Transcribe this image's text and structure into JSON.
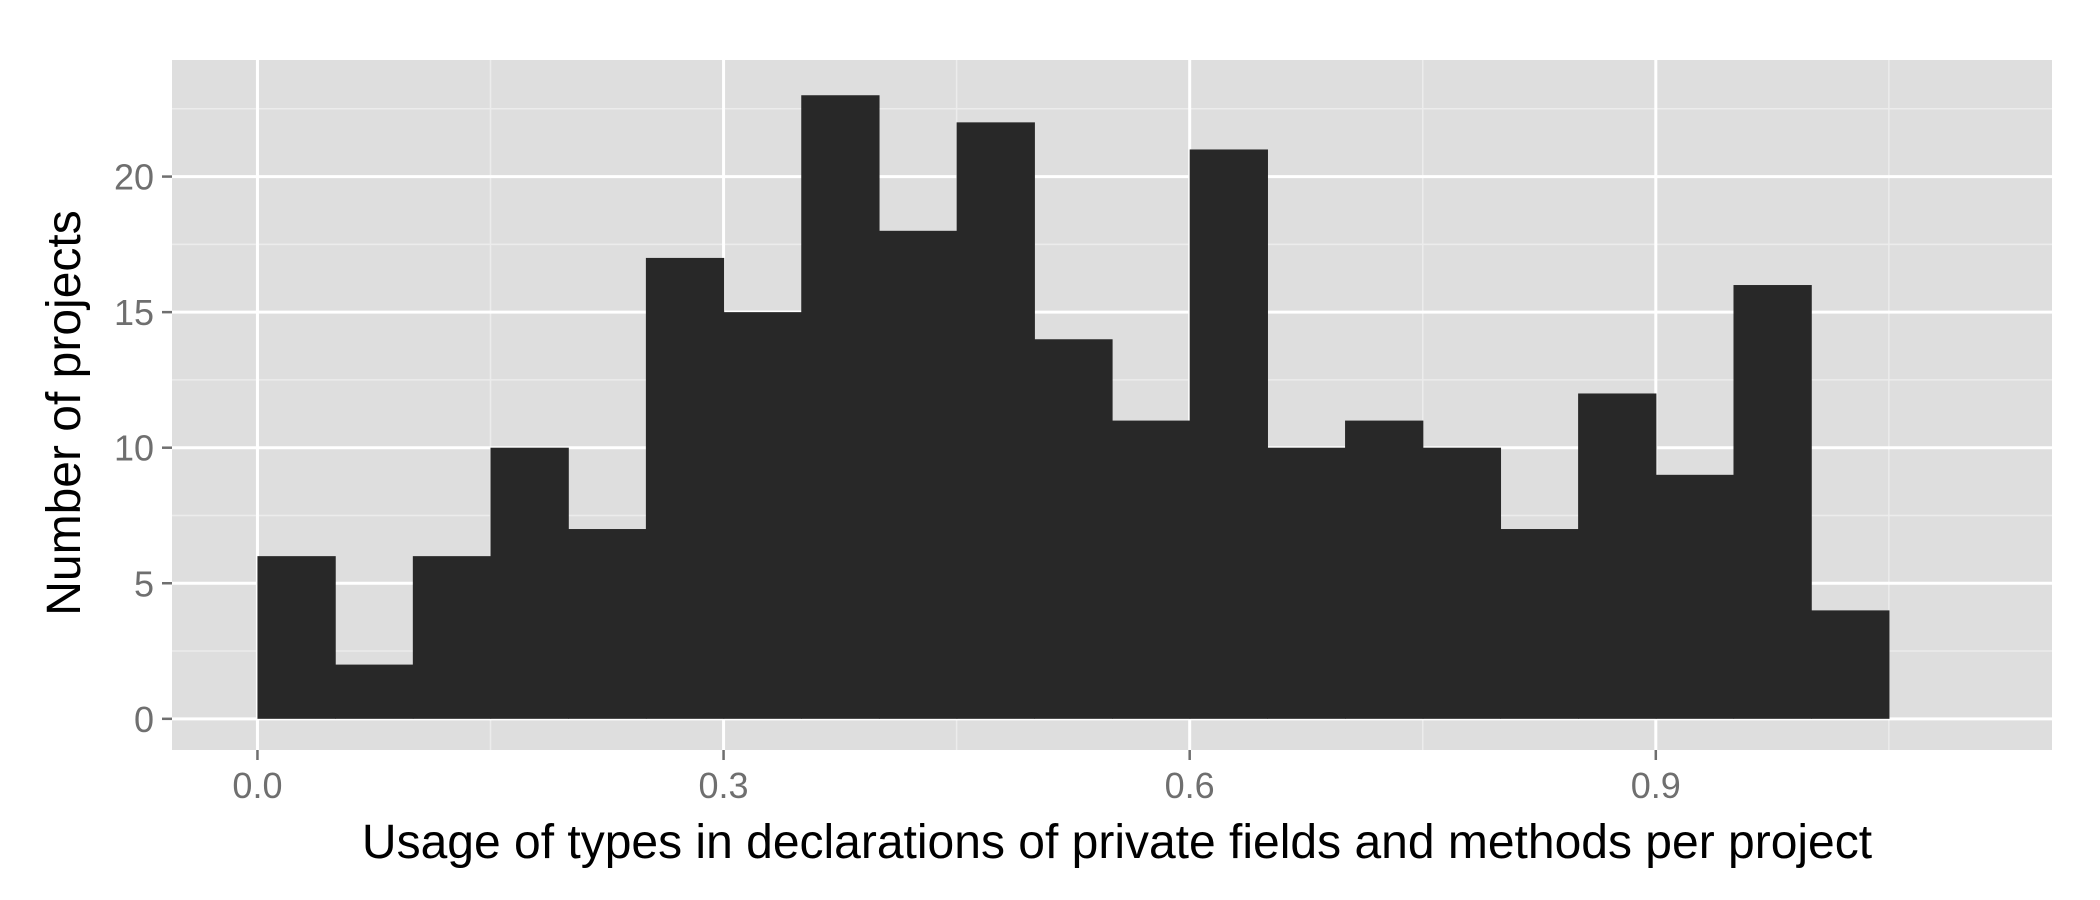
{
  "chart_data": {
    "type": "bar",
    "title": "",
    "xlabel": "Usage of types in declarations of private fields and methods per project",
    "ylabel": "Number of projects",
    "xlim": [
      -0.055,
      1.155
    ],
    "ylim": [
      -1.15,
      24.3
    ],
    "bin_width": 0.05,
    "bins": [
      {
        "start": 0.0,
        "count": 6
      },
      {
        "start": 0.05,
        "count": 2
      },
      {
        "start": 0.1,
        "count": 6
      },
      {
        "start": 0.15,
        "count": 10
      },
      {
        "start": 0.2,
        "count": 7
      },
      {
        "start": 0.25,
        "count": 17
      },
      {
        "start": 0.3,
        "count": 15
      },
      {
        "start": 0.35,
        "count": 23
      },
      {
        "start": 0.4,
        "count": 18
      },
      {
        "start": 0.45,
        "count": 22
      },
      {
        "start": 0.5,
        "count": 14
      },
      {
        "start": 0.55,
        "count": 11
      },
      {
        "start": 0.6,
        "count": 21
      },
      {
        "start": 0.65,
        "count": 10
      },
      {
        "start": 0.7,
        "count": 11
      },
      {
        "start": 0.75,
        "count": 10
      },
      {
        "start": 0.8,
        "count": 7
      },
      {
        "start": 0.85,
        "count": 12
      },
      {
        "start": 0.9,
        "count": 9
      },
      {
        "start": 0.95,
        "count": 16
      },
      {
        "start": 1.0,
        "count": 4
      }
    ],
    "x_ticks": [
      {
        "value": 0.0,
        "label": "0.0"
      },
      {
        "value": 0.3,
        "label": "0.3"
      },
      {
        "value": 0.6,
        "label": "0.6"
      },
      {
        "value": 0.9,
        "label": "0.9"
      }
    ],
    "x_minor_ticks": [
      0.15,
      0.45,
      0.75,
      1.05
    ],
    "y_ticks": [
      {
        "value": 0,
        "label": "0"
      },
      {
        "value": 5,
        "label": "5"
      },
      {
        "value": 10,
        "label": "10"
      },
      {
        "value": 15,
        "label": "15"
      },
      {
        "value": 20,
        "label": "20"
      }
    ],
    "y_minor_ticks": [
      2.5,
      7.5,
      12.5,
      17.5,
      22.5
    ],
    "grid": true,
    "legend": "none",
    "colors": {
      "panel_background": "#dedede",
      "grid_major": "#ffffff",
      "grid_minor": "#ececec",
      "bar_fill": "#282828",
      "tick_label": "#6f6f6f",
      "tick_mark": "#6f6f6f",
      "axis_title": "#000000"
    }
  }
}
